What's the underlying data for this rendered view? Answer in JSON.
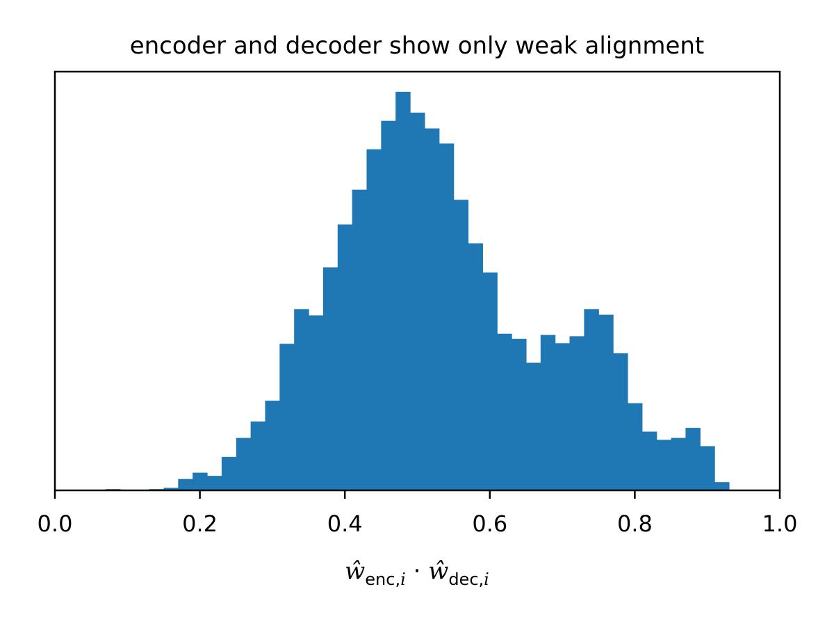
{
  "chart_data": {
    "type": "bar",
    "title": "encoder and decoder show only weak alignment",
    "xlabel": "ŵ_enc,i · ŵ_dec,i",
    "xlabel_parts": {
      "w1": "ŵ",
      "sub1": "enc,",
      "sub1_italic": "i",
      "dot": " · ",
      "w2": "ŵ",
      "sub2": "dec,",
      "sub2_italic": "i"
    },
    "ylabel": "",
    "xlim": [
      0.0,
      1.0
    ],
    "x_ticks": [
      "0.0",
      "0.2",
      "0.4",
      "0.6",
      "0.8",
      "1.0"
    ],
    "y_ticks_shown": false,
    "grid": false,
    "bin_width": 0.02,
    "bin_starts": [
      0.07,
      0.09,
      0.11,
      0.13,
      0.15,
      0.17,
      0.19,
      0.21,
      0.23,
      0.25,
      0.27,
      0.29,
      0.31,
      0.33,
      0.35,
      0.37,
      0.39,
      0.41,
      0.43,
      0.45,
      0.47,
      0.49,
      0.51,
      0.53,
      0.55,
      0.57,
      0.59,
      0.61,
      0.63,
      0.65,
      0.67,
      0.69,
      0.71,
      0.73,
      0.75,
      0.77,
      0.79,
      0.81,
      0.83,
      0.85,
      0.87,
      0.89,
      0.91,
      0.93
    ],
    "values": [
      2,
      1,
      1,
      2,
      4,
      18,
      28,
      23,
      53,
      83,
      109,
      142,
      232,
      287,
      277,
      353,
      421,
      476,
      540,
      585,
      631,
      598,
      573,
      549,
      460,
      391,
      345,
      248,
      240,
      202,
      246,
      233,
      244,
      287,
      278,
      217,
      138,
      93,
      80,
      83,
      99,
      70,
      13,
      0
    ],
    "ylim": [
      0,
      632
    ],
    "colors": {
      "bar": "#1f77b4",
      "axis": "#000000",
      "background": "#ffffff"
    }
  }
}
